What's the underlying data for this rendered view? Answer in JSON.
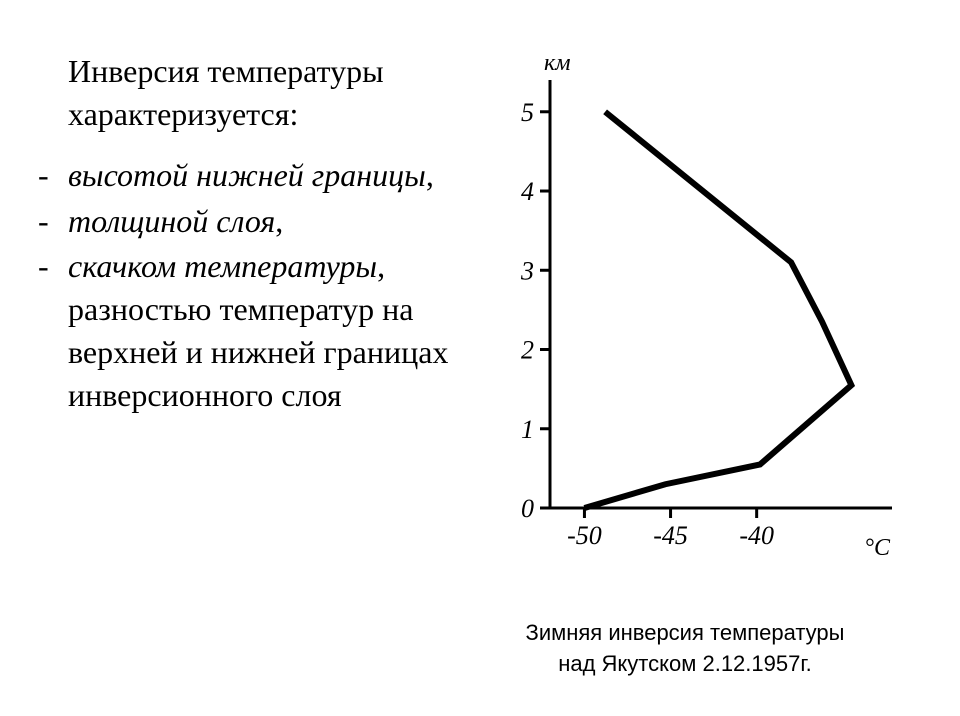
{
  "heading": "Инверсия температуры характеризуется:",
  "items": [
    {
      "italic": "высотой нижней границы",
      "plain": ","
    },
    {
      "italic": "толщиной слоя",
      "plain": ","
    },
    {
      "italic": "скачком температуры",
      "plain": ", разностью температур на верхней и нижней границах инверсионного слоя"
    }
  ],
  "chart": {
    "type": "line",
    "y_label": "км",
    "x_unit": "°C",
    "y_ticks": [
      0,
      1,
      2,
      3,
      4,
      5
    ],
    "x_ticks": [
      -50,
      -45,
      -40
    ],
    "xlim": [
      -52,
      -34
    ],
    "ylim": [
      0,
      5.3
    ],
    "data": [
      {
        "x": -50,
        "y": 0
      },
      {
        "x": -45.3,
        "y": 0.3
      },
      {
        "x": -39.8,
        "y": 0.55
      },
      {
        "x": -34.5,
        "y": 1.55
      },
      {
        "x": -36.2,
        "y": 2.35
      },
      {
        "x": -38.0,
        "y": 3.1
      },
      {
        "x": -48.8,
        "y": 5.0
      }
    ],
    "axis_color": "#000000",
    "line_color": "#000000",
    "line_width": 6,
    "axis_width": 3,
    "background_color": "#ffffff",
    "tick_font_size": 26,
    "label_font_size": 24
  },
  "caption_line1": "Зимняя инверсия температуры",
  "caption_line2": "над Якутском 2.12.1957г."
}
